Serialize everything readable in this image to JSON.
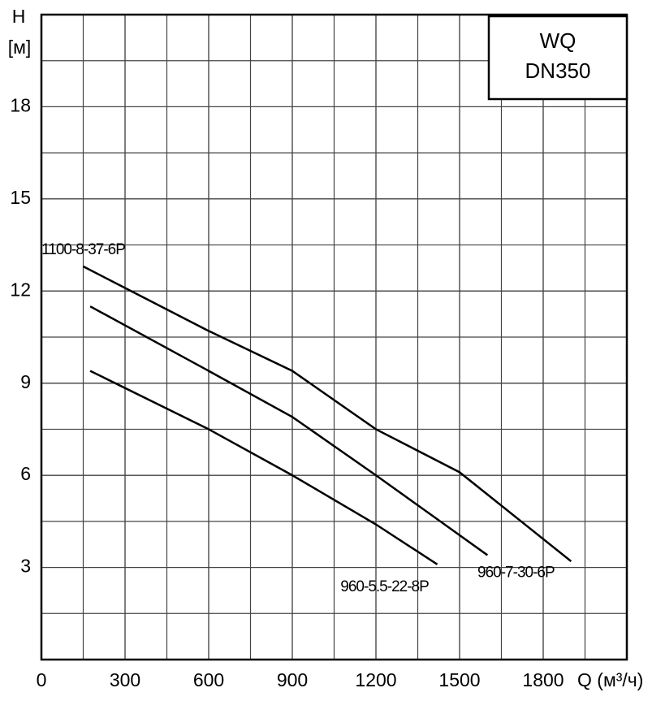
{
  "chart_data": {
    "type": "line",
    "title": [
      "WQ",
      "DN350"
    ],
    "y_label": [
      "H",
      "[м]"
    ],
    "x_label": "Q (м³/ч)",
    "xlim": [
      0,
      2100
    ],
    "xticks": [
      0,
      300,
      600,
      900,
      1200,
      1500,
      1800
    ],
    "ylim": [
      0,
      21
    ],
    "yticks": [
      3,
      6,
      9,
      12,
      15,
      18
    ],
    "grid": true,
    "series": [
      {
        "name": "1100-8-37-6P",
        "color": "#000000",
        "x": [
          150,
          300,
          600,
          900,
          1200,
          1500,
          1900
        ],
        "values": [
          12.8,
          12.1,
          10.7,
          9.4,
          7.5,
          6.1,
          3.2
        ]
      },
      {
        "name": "960-7-30-6P",
        "color": "#000000",
        "x": [
          175,
          600,
          900,
          1200,
          1400,
          1600
        ],
        "values": [
          11.5,
          9.4,
          7.9,
          6.0,
          4.7,
          3.4
        ]
      },
      {
        "name": "960-5.5-22-8P",
        "color": "#000000",
        "x": [
          175,
          600,
          900,
          1200,
          1420
        ],
        "values": [
          9.4,
          7.5,
          6.0,
          4.4,
          3.1
        ]
      }
    ]
  }
}
